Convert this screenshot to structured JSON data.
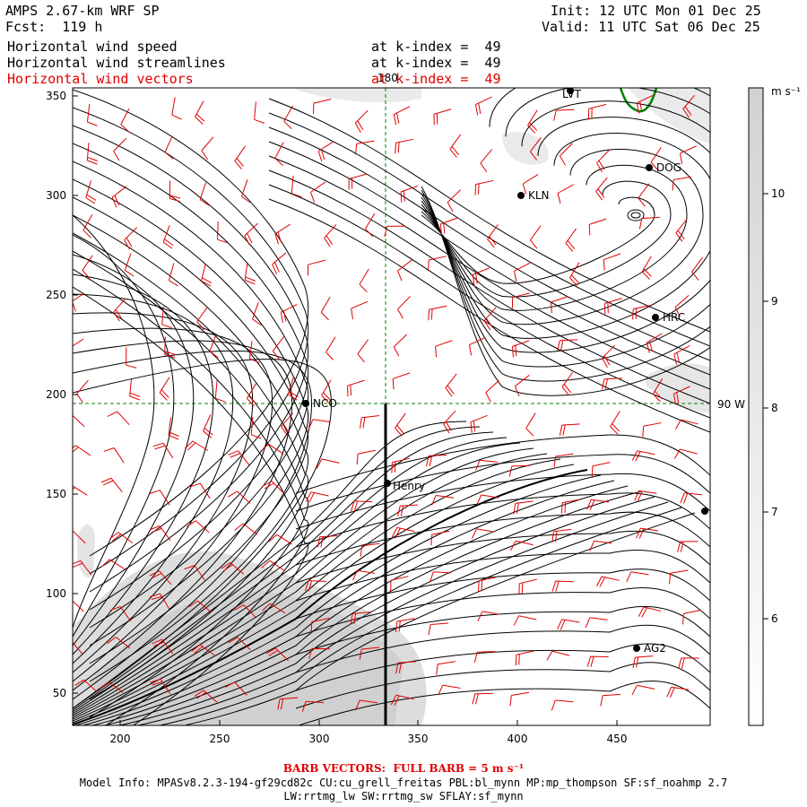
{
  "header": {
    "model_title": "AMPS 2.67-km WRF SP",
    "forecast": "Fcst:  119 h",
    "init": "Init: 12 UTC Mon 01 Dec 25",
    "valid": "Valid: 11 UTC Sat 06 Dec 25"
  },
  "fields": [
    {
      "name": "Horizontal wind speed",
      "level": "at k-index =  49",
      "color": "#000000"
    },
    {
      "name": "Horizontal wind streamlines",
      "level": "at k-index =  49",
      "color": "#000000"
    },
    {
      "name": "Horizontal wind vectors",
      "level": "at k-index =  49",
      "color": "#e00000"
    }
  ],
  "map": {
    "x_ticks": [
      "200",
      "250",
      "300",
      "350",
      "400",
      "450"
    ],
    "y_ticks": [
      "50",
      "100",
      "150",
      "200",
      "250",
      "300",
      "350"
    ],
    "longitude_label_top": "180",
    "longitude_label_right": "90 W",
    "stations": [
      "NCO",
      "Henry",
      "KLN",
      "DOG",
      "HRC",
      "AG2",
      "LVT"
    ],
    "shading_color": "#d8d8d8",
    "streamline_color": "#000000",
    "barb_color": "#e00000",
    "coast_color": "#008000"
  },
  "colorbar": {
    "units": "m s⁻¹",
    "labels": [
      "10",
      "9",
      "8",
      "7",
      "6"
    ]
  },
  "footer": {
    "barb_note": "BARB VECTORS:  FULL BARB = 5 m s⁻¹",
    "model_info_1": "Model Info: MPASv8.2.3-194-gf29cd82c CU:cu_grell_freitas PBL:bl_mynn MP:mp_thompson SF:sf_noahmp 2.7",
    "model_info_2": "LW:rrtmg_lw SW:rrtmg_sw SFLAY:sf_mynn"
  }
}
